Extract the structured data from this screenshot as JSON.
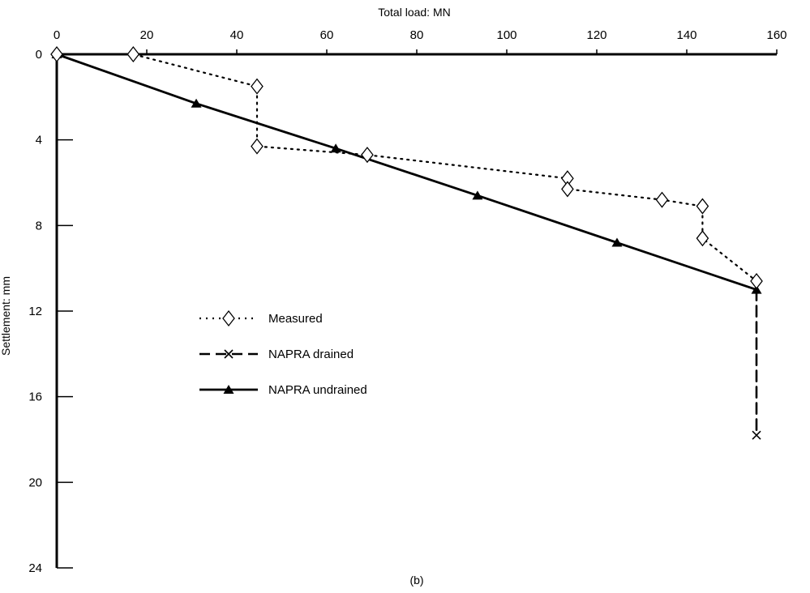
{
  "chart_data": {
    "type": "line",
    "caption": "(b)",
    "xlabel": "Total load: MN",
    "ylabel": "Settlement: mm",
    "xlim": [
      0,
      160
    ],
    "ylim": [
      0,
      24
    ],
    "y_inverted": true,
    "x_axis_position": "top",
    "grid": false,
    "legend_position": "center-left",
    "xticks": [
      0,
      20,
      40,
      60,
      80,
      100,
      120,
      140,
      160
    ],
    "yticks": [
      0,
      4,
      8,
      12,
      16,
      20,
      24
    ],
    "series": [
      {
        "name": "Measured",
        "style": "dotted",
        "marker": "diamond-open",
        "color": "#000000",
        "points": [
          [
            0,
            0
          ],
          [
            17,
            0
          ],
          [
            44.5,
            1.5
          ],
          [
            44.5,
            4.3
          ],
          [
            69,
            4.7
          ],
          [
            113.5,
            5.8
          ],
          [
            113.5,
            6.3
          ],
          [
            134.5,
            6.8
          ],
          [
            143.5,
            7.1
          ],
          [
            143.5,
            8.6
          ],
          [
            155.5,
            10.6
          ]
        ]
      },
      {
        "name": "NAPRA drained",
        "style": "dashed",
        "marker": "x",
        "color": "#000000",
        "points": [
          [
            155.5,
            11.0
          ],
          [
            155.5,
            17.8
          ]
        ]
      },
      {
        "name": "NAPRA undrained",
        "style": "solid",
        "marker": "triangle-filled",
        "color": "#000000",
        "points": [
          [
            0,
            0
          ],
          [
            31,
            2.3
          ],
          [
            62,
            4.4
          ],
          [
            93.5,
            6.6
          ],
          [
            124.5,
            8.8
          ],
          [
            155.5,
            11.0
          ]
        ]
      }
    ]
  }
}
